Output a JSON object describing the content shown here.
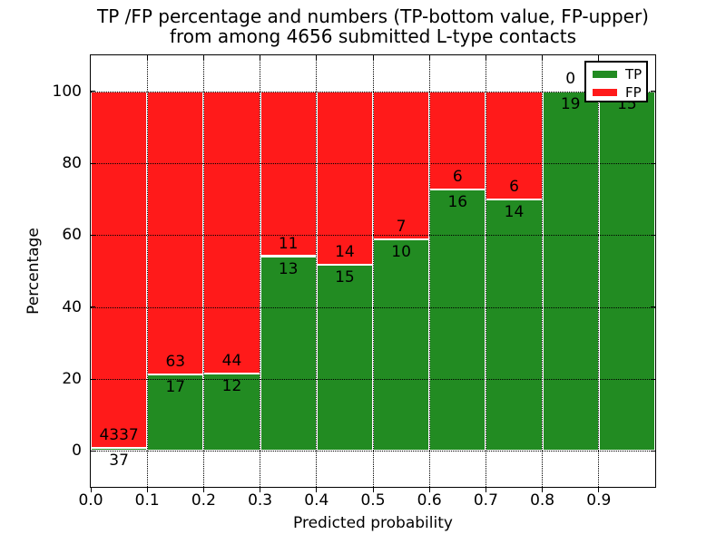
{
  "chart_data": {
    "type": "bar",
    "subtype": "stacked-percentage-histogram",
    "title_line1": "TP /FP percentage and numbers (TP-bottom value, FP-upper)",
    "title_line2": "from among 4656 submitted L-type contacts",
    "xlabel": "Predicted probability",
    "ylabel": "Percentage",
    "x_ticks": [
      "0.0",
      "0.1",
      "0.2",
      "0.3",
      "0.4",
      "0.5",
      "0.6",
      "0.7",
      "0.8",
      "0.9"
    ],
    "y_ticks": [
      0,
      20,
      40,
      60,
      80,
      100
    ],
    "xlim": [
      0.0,
      1.0
    ],
    "ylim": [
      -10,
      110
    ],
    "bin_width": 0.1,
    "grid": "dotted",
    "background": "#ffffff",
    "categories": [
      "0.0-0.1",
      "0.1-0.2",
      "0.2-0.3",
      "0.3-0.4",
      "0.4-0.5",
      "0.5-0.6",
      "0.6-0.7",
      "0.7-0.8",
      "0.8-0.9",
      "0.9-1.0"
    ],
    "series": [
      {
        "name": "TP",
        "color": "#228B22",
        "values": [
          37,
          17,
          12,
          13,
          15,
          10,
          16,
          14,
          19,
          15
        ]
      },
      {
        "name": "FP",
        "color": "#FF1A1A",
        "values": [
          4337,
          63,
          44,
          11,
          14,
          7,
          6,
          6,
          0,
          0
        ]
      }
    ],
    "legend": {
      "position": "upper right",
      "entries": [
        {
          "label": "TP",
          "color": "#228B22"
        },
        {
          "label": "FP",
          "color": "#FF1A1A"
        }
      ]
    }
  }
}
